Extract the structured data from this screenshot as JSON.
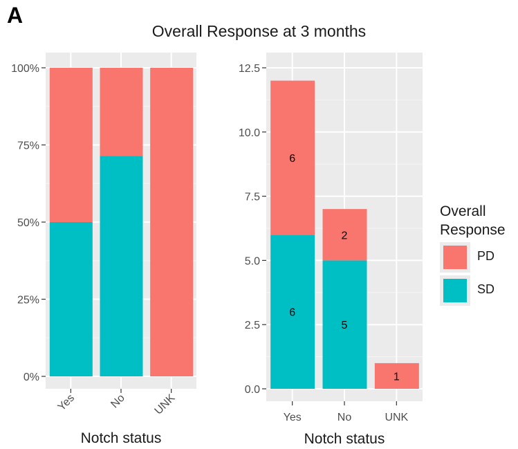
{
  "figure": {
    "panel_label": "A",
    "title": "Overall Response at 3 months"
  },
  "legend": {
    "title_line1": "Overall",
    "title_line2": "Response",
    "items": [
      {
        "label": "PD",
        "color": "#F8766D"
      },
      {
        "label": "SD",
        "color": "#00BFC4"
      }
    ]
  },
  "chart_data": [
    {
      "type": "bar",
      "stacked": "fill",
      "xlabel": "Notch status",
      "ylabel": "",
      "categories": [
        "Yes",
        "No",
        "UNK"
      ],
      "series": [
        {
          "name": "SD",
          "values": [
            0.5,
            0.7143,
            0
          ]
        },
        {
          "name": "PD",
          "values": [
            0.5,
            0.2857,
            1
          ]
        }
      ],
      "ylim": [
        0,
        1
      ],
      "yticks": [
        0,
        0.25,
        0.5,
        0.75,
        1
      ],
      "ytick_labels": [
        "0%",
        "25%",
        "50%",
        "75%",
        "100%"
      ],
      "xtick_rotation": 45,
      "grid": true
    },
    {
      "type": "bar",
      "stacked": "stack",
      "xlabel": "Notch status",
      "ylabel": "",
      "categories": [
        "Yes",
        "No",
        "UNK"
      ],
      "series": [
        {
          "name": "SD",
          "values": [
            6,
            5,
            0
          ]
        },
        {
          "name": "PD",
          "values": [
            6,
            2,
            1
          ]
        }
      ],
      "data_labels": {
        "SD": [
          "6",
          "5",
          ""
        ],
        "PD": [
          "6",
          "2",
          "1"
        ]
      },
      "ylim": [
        0,
        12.5
      ],
      "yticks": [
        0,
        2.5,
        5,
        7.5,
        10,
        12.5
      ],
      "ytick_labels": [
        "0.0",
        "2.5",
        "5.0",
        "7.5",
        "10.0",
        "12.5"
      ],
      "xtick_rotation": 0,
      "grid": true
    }
  ]
}
